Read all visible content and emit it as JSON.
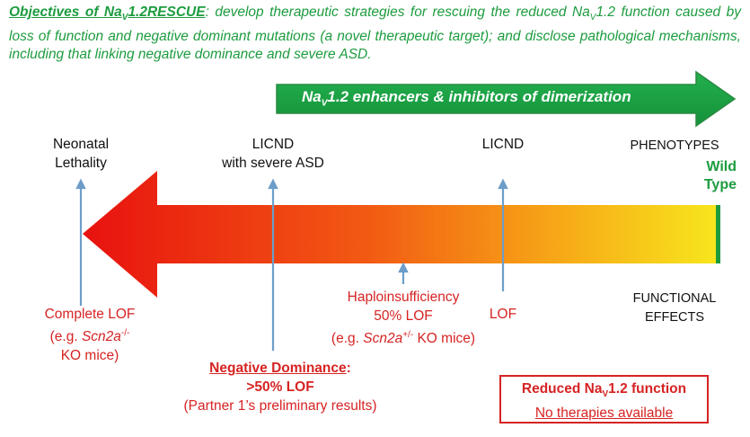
{
  "objective": {
    "lead_prefix": "Objectives of Na",
    "lead_sub": "V",
    "lead_suffix": "1.2RESCUE",
    "colon": ": ",
    "text_1": "develop therapeutic strategies for rescuing the reduced Na",
    "text_sub": "V",
    "text_2": "1.2 function caused by loss of function and negative dominant mutations (a novel therapeutic target); and disclose pathological mechanisms, including that linking negative dominance and severe ASD."
  },
  "banner": {
    "prefix": "Na",
    "sub": "V",
    "suffix": "1.2 enhancers & inhibitors of dimerization"
  },
  "phenotypes": {
    "neonatal_line1": "Neonatal",
    "neonatal_line2": "Lethality",
    "licnd_asd_line1": "LICND",
    "licnd_asd_line2": "with severe ASD",
    "licnd": "LICND",
    "header": "PHENOTYPES",
    "wild_line1": "Wild",
    "wild_line2": "Type"
  },
  "effects": {
    "complete_lof_line1": "Complete LOF",
    "complete_lof_eg": "(e.g. ",
    "complete_lof_gene": "Scn2a",
    "complete_lof_sup": "-/-",
    "complete_lof_line3": "KO mice)",
    "haplo_line1": "Haploinsufficiency",
    "haplo_line2": "50% LOF",
    "haplo_eg": "(e.g. ",
    "haplo_gene": "Scn2a",
    "haplo_sup": "+/-",
    "haplo_rest": " KO mice)",
    "lof": "LOF",
    "header_line1": "FUNCTIONAL",
    "header_line2": "EFFECTS",
    "negdom_line1": "Negative Dominance",
    "negdom_colon": ":",
    "negdom_line2": ">50% LOF",
    "negdom_line3": "(Partner 1’s preliminary results)"
  },
  "box": {
    "line1_prefix": "Reduced Na",
    "line1_sub": "V",
    "line1_suffix": "1.2 function",
    "line2": "No therapies available"
  },
  "colors": {
    "green": "#1d9c3f",
    "red": "#d62323",
    "connector": "#6d9dc9",
    "gradient_start": "#e8120f",
    "gradient_end": "#f7e11d"
  }
}
